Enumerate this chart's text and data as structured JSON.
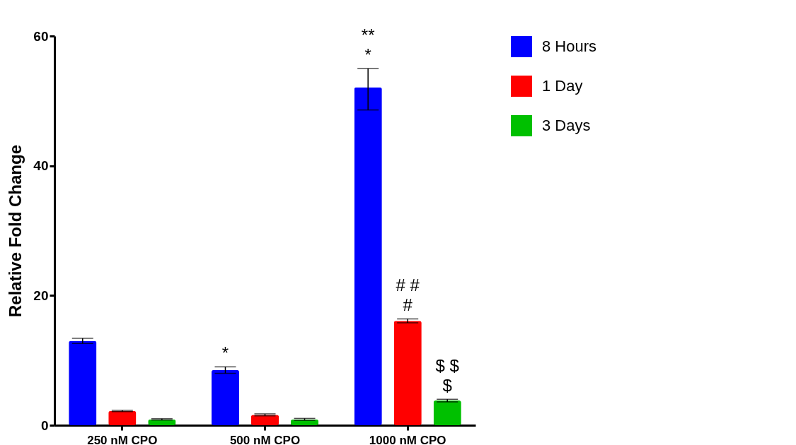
{
  "chart_data": {
    "type": "bar",
    "ylabel": "Relative Fold Change",
    "categories": [
      "250 nM CPO",
      "500 nM CPO",
      "1000 nM CPO"
    ],
    "series": [
      {
        "name": "8 Hours",
        "color": "#0000ff",
        "values": [
          13.0,
          8.5,
          52.1
        ],
        "errors": [
          0.4,
          0.5,
          [
            48.6,
            55.0
          ]
        ]
      },
      {
        "name": "1 Day",
        "color": "#ff0000",
        "values": [
          2.2,
          1.6,
          16.1
        ],
        "errors": [
          0.1,
          0.15,
          0.3
        ]
      },
      {
        "name": "3 Days",
        "color": "#00c000",
        "values": [
          0.9,
          0.9,
          3.8
        ],
        "errors": [
          0.1,
          0.15,
          0.2
        ]
      }
    ],
    "ylim": [
      0,
      60
    ],
    "yticks": [
      0,
      20,
      40,
      60
    ],
    "legend": "top right",
    "grid": false,
    "annotations": [
      "*",
      "*",
      "**",
      "#",
      "# #",
      "$",
      "$ $"
    ]
  }
}
